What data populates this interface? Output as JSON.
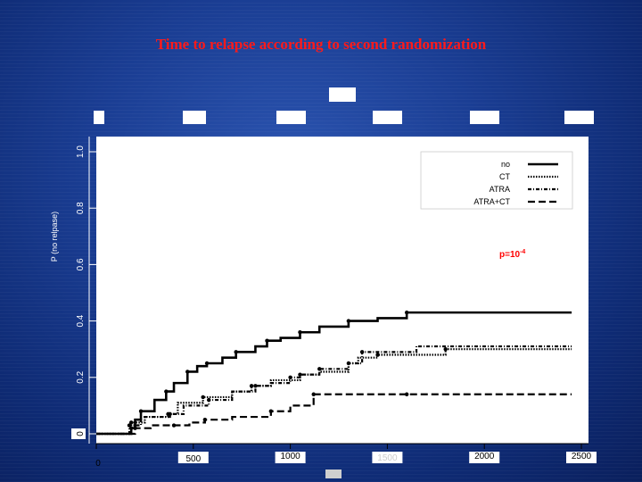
{
  "slide": {
    "title": "Time to relapse according to second randomization",
    "background_color": "#1a3d93",
    "title_color": "#ff1a1a"
  },
  "chart_data": {
    "type": "line",
    "title": "Time to relapse according to second randomization",
    "xlabel": "",
    "ylabel": "P (no relpase)",
    "xlim": [
      0,
      2500
    ],
    "ylim": [
      0,
      1.0
    ],
    "x_ticks": [
      0,
      500,
      1000,
      1500,
      2000,
      2500
    ],
    "x_tick_labels": [
      "0",
      "500",
      "1000",
      "1500",
      "2000",
      "2500"
    ],
    "y_ticks": [
      0,
      0.2,
      0.4,
      0.6,
      0.8,
      1.0
    ],
    "y_tick_labels": [
      "0",
      "0.2",
      "0.4",
      "0.6",
      "0.8",
      "1.0"
    ],
    "grid": false,
    "legend_position": "top-right",
    "annotation": {
      "text": "p=10",
      "superscript": "-4",
      "color": "#ff0000"
    },
    "series": [
      {
        "name": "no",
        "style": "solid",
        "x": [
          0,
          180,
          200,
          230,
          300,
          360,
          400,
          470,
          520,
          570,
          650,
          720,
          820,
          880,
          950,
          1050,
          1150,
          1300,
          1450,
          1600,
          2450
        ],
        "y": [
          0,
          0.02,
          0.05,
          0.08,
          0.12,
          0.15,
          0.18,
          0.22,
          0.24,
          0.25,
          0.27,
          0.29,
          0.31,
          0.33,
          0.34,
          0.36,
          0.38,
          0.4,
          0.41,
          0.43,
          0.43
        ]
      },
      {
        "name": "CT",
        "style": "dotted",
        "x": [
          0,
          180,
          250,
          370,
          420,
          550,
          700,
          800,
          900,
          1050,
          1150,
          1300,
          1350,
          1450,
          1750,
          1800,
          2450
        ],
        "y": [
          0,
          0.04,
          0.06,
          0.07,
          0.11,
          0.13,
          0.15,
          0.17,
          0.19,
          0.21,
          0.22,
          0.25,
          0.27,
          0.28,
          0.28,
          0.3,
          0.3
        ]
      },
      {
        "name": "ATRA",
        "style": "dash-dot",
        "x": [
          0,
          170,
          230,
          380,
          450,
          580,
          700,
          820,
          900,
          1000,
          1050,
          1150,
          1300,
          1370,
          1650,
          2450
        ],
        "y": [
          0,
          0.03,
          0.06,
          0.07,
          0.1,
          0.12,
          0.15,
          0.17,
          0.18,
          0.2,
          0.21,
          0.23,
          0.25,
          0.29,
          0.31,
          0.31
        ]
      },
      {
        "name": "ATRA+CT",
        "style": "dashed",
        "x": [
          0,
          200,
          280,
          400,
          480,
          560,
          700,
          900,
          1000,
          1120,
          1400,
          1600,
          2450
        ],
        "y": [
          0,
          0.02,
          0.03,
          0.03,
          0.04,
          0.05,
          0.06,
          0.08,
          0.1,
          0.14,
          0.14,
          0.14,
          0.14
        ]
      }
    ]
  }
}
